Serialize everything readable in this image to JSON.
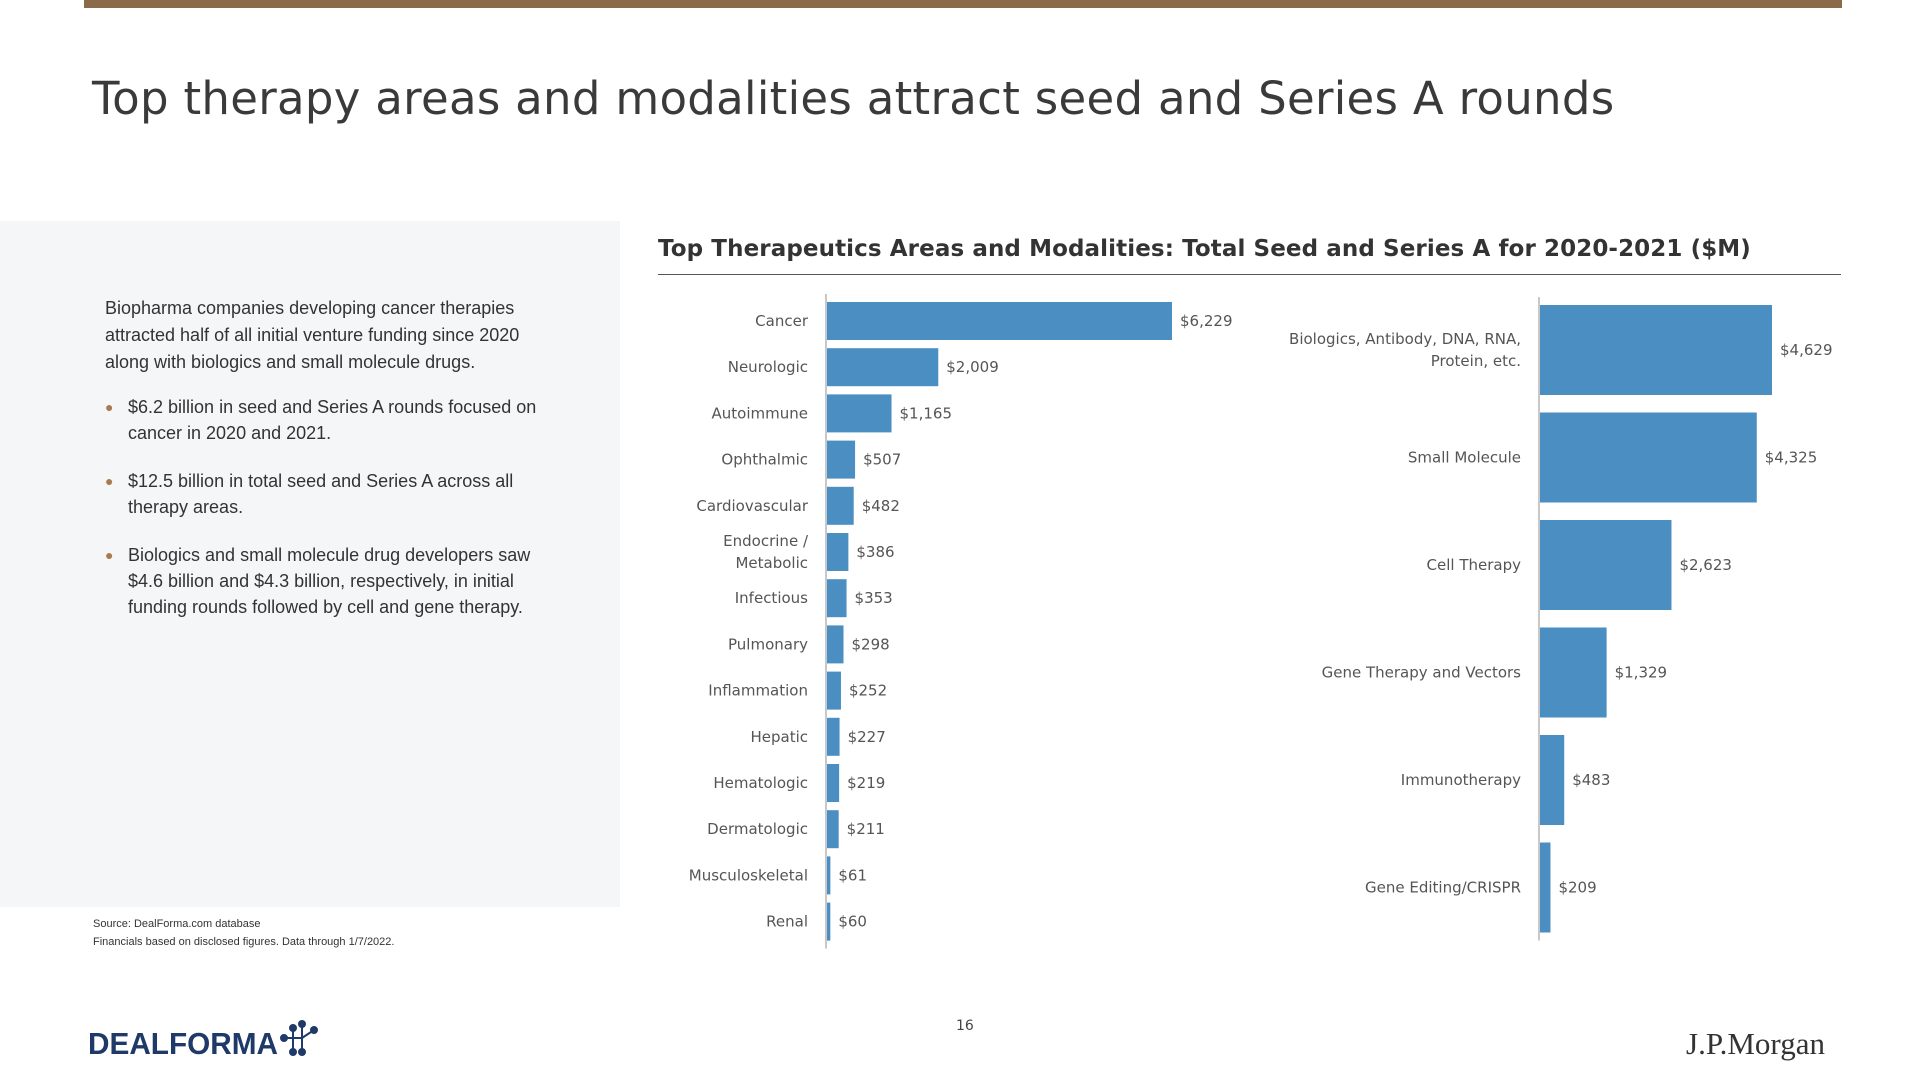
{
  "page": {
    "title": "Top therapy areas and modalities attract seed and Series A rounds",
    "page_number": "16",
    "brand_color": "#8b6a4a",
    "bar_color": "#4a8ec2"
  },
  "left_panel": {
    "intro": "Biopharma companies developing cancer therapies attracted half of all initial venture funding since 2020 along with biologics and small molecule drugs.",
    "bullets": [
      "$6.2 billion in seed and Series A rounds focused on cancer in 2020 and 2021.",
      "$12.5 billion in total seed and Series A across all therapy areas.",
      "Biologics and small molecule drug developers saw $4.6 billion and $4.3 billion, respectively, in initial funding rounds followed by cell and gene therapy."
    ]
  },
  "source": {
    "line1": "Source: DealForma.com database",
    "line2": "Financials based on disclosed figures. Data through 1/7/2022."
  },
  "logos": {
    "left": "DEALFORMA",
    "right": "J.P.Morgan"
  },
  "chart_data": [
    {
      "type": "bar",
      "orientation": "horizontal",
      "title": "Top Therapeutics Areas and Modalities: Total Seed and Series A for 2020-2021 ($M)",
      "categories": [
        "Cancer",
        "Neurologic",
        "Autoimmune",
        "Ophthalmic",
        "Cardiovascular",
        "Endocrine / Metabolic",
        "Infectious",
        "Pulmonary",
        "Inflammation",
        "Hepatic",
        "Hematologic",
        "Dermatologic",
        "Musculoskeletal",
        "Renal"
      ],
      "category_lines": [
        [
          "Cancer"
        ],
        [
          "Neurologic"
        ],
        [
          "Autoimmune"
        ],
        [
          "Ophthalmic"
        ],
        [
          "Cardiovascular"
        ],
        [
          "Endocrine /",
          "Metabolic"
        ],
        [
          "Infectious"
        ],
        [
          "Pulmonary"
        ],
        [
          "Inflammation"
        ],
        [
          "Hepatic"
        ],
        [
          "Hematologic"
        ],
        [
          "Dermatologic"
        ],
        [
          "Musculoskeletal"
        ],
        [
          "Renal"
        ]
      ],
      "values": [
        6229,
        2009,
        1165,
        507,
        482,
        386,
        353,
        298,
        252,
        227,
        219,
        211,
        61,
        60
      ],
      "labels": [
        "$6,229",
        "$2,009",
        "$1,165",
        "$507",
        "$482",
        "$386",
        "$353",
        "$298",
        "$252",
        "$227",
        "$219",
        "$211",
        "$61",
        "$60"
      ],
      "xlim": [
        0,
        6229
      ],
      "grid": false,
      "legend": "none"
    },
    {
      "type": "bar",
      "orientation": "horizontal",
      "categories": [
        "Biologics, Antibody, DNA, RNA, Protein, etc.",
        "Small Molecule",
        "Cell Therapy",
        "Gene Therapy and Vectors",
        "Immunotherapy",
        "Gene Editing/CRISPR"
      ],
      "category_lines": [
        [
          "Biologics, Antibody, DNA, RNA,",
          "Protein, etc."
        ],
        [
          "Small Molecule"
        ],
        [
          "Cell Therapy"
        ],
        [
          "Gene Therapy and Vectors"
        ],
        [
          "Immunotherapy"
        ],
        [
          "Gene Editing/CRISPR"
        ]
      ],
      "values": [
        4629,
        4325,
        2623,
        1329,
        483,
        209
      ],
      "labels": [
        "$4,629",
        "$4,325",
        "$2,623",
        "$1,329",
        "$483",
        "$209"
      ],
      "xlim": [
        0,
        4629
      ],
      "grid": false,
      "legend": "none"
    }
  ]
}
